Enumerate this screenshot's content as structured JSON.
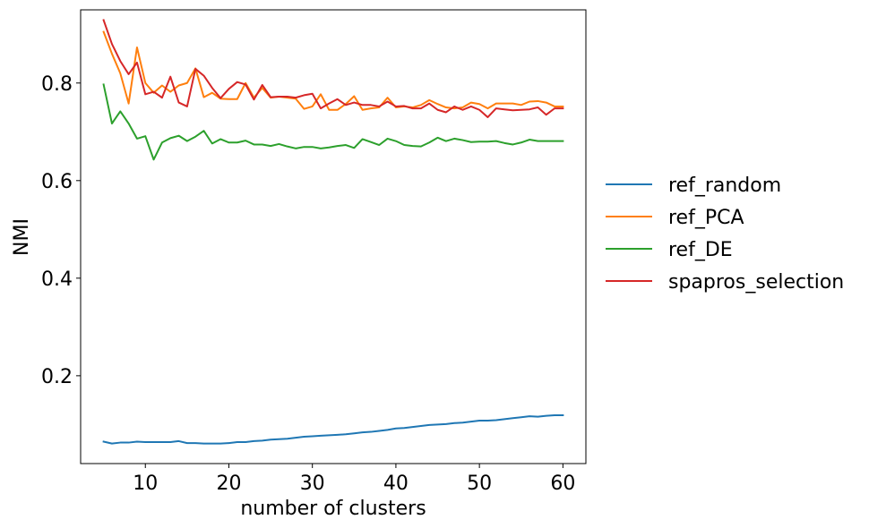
{
  "chart_data": {
    "type": "line",
    "xlabel": "number of clusters",
    "ylabel": "NMI",
    "xlim": [
      2.25,
      62.75
    ],
    "ylim": [
      0.02,
      0.95
    ],
    "x_ticks": [
      10,
      20,
      30,
      40,
      50,
      60
    ],
    "y_ticks": [
      0.2,
      0.4,
      0.6,
      0.8
    ],
    "x_tick_labels": [
      "10",
      "20",
      "30",
      "40",
      "50",
      "60"
    ],
    "y_tick_labels": [
      "0.2",
      "0.4",
      "0.6",
      "0.8"
    ],
    "grid": false,
    "legend_position": "right-outside",
    "x": [
      5,
      6,
      7,
      8,
      9,
      10,
      11,
      12,
      13,
      14,
      15,
      16,
      17,
      18,
      19,
      20,
      21,
      22,
      23,
      24,
      25,
      26,
      27,
      28,
      29,
      30,
      31,
      32,
      33,
      34,
      35,
      36,
      37,
      38,
      39,
      40,
      41,
      42,
      43,
      44,
      45,
      46,
      47,
      48,
      49,
      50,
      51,
      52,
      53,
      54,
      55,
      56,
      57,
      58,
      59,
      60
    ],
    "series": [
      {
        "name": "ref_random",
        "color": "#1f77b4",
        "values": [
          0.065,
          0.061,
          0.063,
          0.063,
          0.065,
          0.064,
          0.064,
          0.064,
          0.064,
          0.066,
          0.062,
          0.062,
          0.061,
          0.061,
          0.061,
          0.062,
          0.064,
          0.064,
          0.066,
          0.067,
          0.069,
          0.07,
          0.071,
          0.073,
          0.075,
          0.076,
          0.077,
          0.078,
          0.079,
          0.08,
          0.082,
          0.084,
          0.085,
          0.087,
          0.089,
          0.092,
          0.093,
          0.095,
          0.097,
          0.099,
          0.1,
          0.101,
          0.103,
          0.104,
          0.106,
          0.108,
          0.108,
          0.109,
          0.111,
          0.113,
          0.115,
          0.117,
          0.116,
          0.118,
          0.119,
          0.119
        ]
      },
      {
        "name": "ref_PCA",
        "color": "#ff7f0e",
        "values": [
          0.905,
          0.86,
          0.82,
          0.758,
          0.873,
          0.8,
          0.78,
          0.795,
          0.782,
          0.795,
          0.8,
          0.83,
          0.771,
          0.78,
          0.768,
          0.767,
          0.767,
          0.8,
          0.77,
          0.79,
          0.77,
          0.772,
          0.77,
          0.768,
          0.747,
          0.752,
          0.777,
          0.745,
          0.745,
          0.757,
          0.773,
          0.745,
          0.748,
          0.75,
          0.77,
          0.75,
          0.752,
          0.75,
          0.755,
          0.765,
          0.757,
          0.75,
          0.748,
          0.75,
          0.76,
          0.757,
          0.748,
          0.758,
          0.758,
          0.758,
          0.755,
          0.762,
          0.763,
          0.76,
          0.752,
          0.752
        ]
      },
      {
        "name": "ref_DE",
        "color": "#2ca02c",
        "values": [
          0.797,
          0.717,
          0.742,
          0.717,
          0.686,
          0.691,
          0.643,
          0.678,
          0.687,
          0.692,
          0.681,
          0.69,
          0.702,
          0.676,
          0.685,
          0.678,
          0.678,
          0.682,
          0.674,
          0.674,
          0.671,
          0.675,
          0.67,
          0.666,
          0.669,
          0.669,
          0.666,
          0.668,
          0.671,
          0.673,
          0.667,
          0.685,
          0.679,
          0.673,
          0.686,
          0.681,
          0.673,
          0.671,
          0.67,
          0.678,
          0.688,
          0.681,
          0.686,
          0.683,
          0.679,
          0.68,
          0.68,
          0.681,
          0.677,
          0.674,
          0.678,
          0.684,
          0.681,
          0.681,
          0.681,
          0.681
        ]
      },
      {
        "name": "spapros_selection",
        "color": "#d62728",
        "values": [
          0.929,
          0.88,
          0.845,
          0.818,
          0.842,
          0.777,
          0.782,
          0.77,
          0.813,
          0.76,
          0.752,
          0.829,
          0.815,
          0.79,
          0.769,
          0.788,
          0.802,
          0.797,
          0.766,
          0.796,
          0.771,
          0.772,
          0.772,
          0.77,
          0.775,
          0.778,
          0.748,
          0.758,
          0.767,
          0.755,
          0.76,
          0.755,
          0.755,
          0.752,
          0.762,
          0.752,
          0.753,
          0.748,
          0.748,
          0.758,
          0.745,
          0.74,
          0.752,
          0.745,
          0.752,
          0.745,
          0.73,
          0.748,
          0.746,
          0.744,
          0.745,
          0.746,
          0.75,
          0.735,
          0.748,
          0.748
        ]
      }
    ]
  }
}
